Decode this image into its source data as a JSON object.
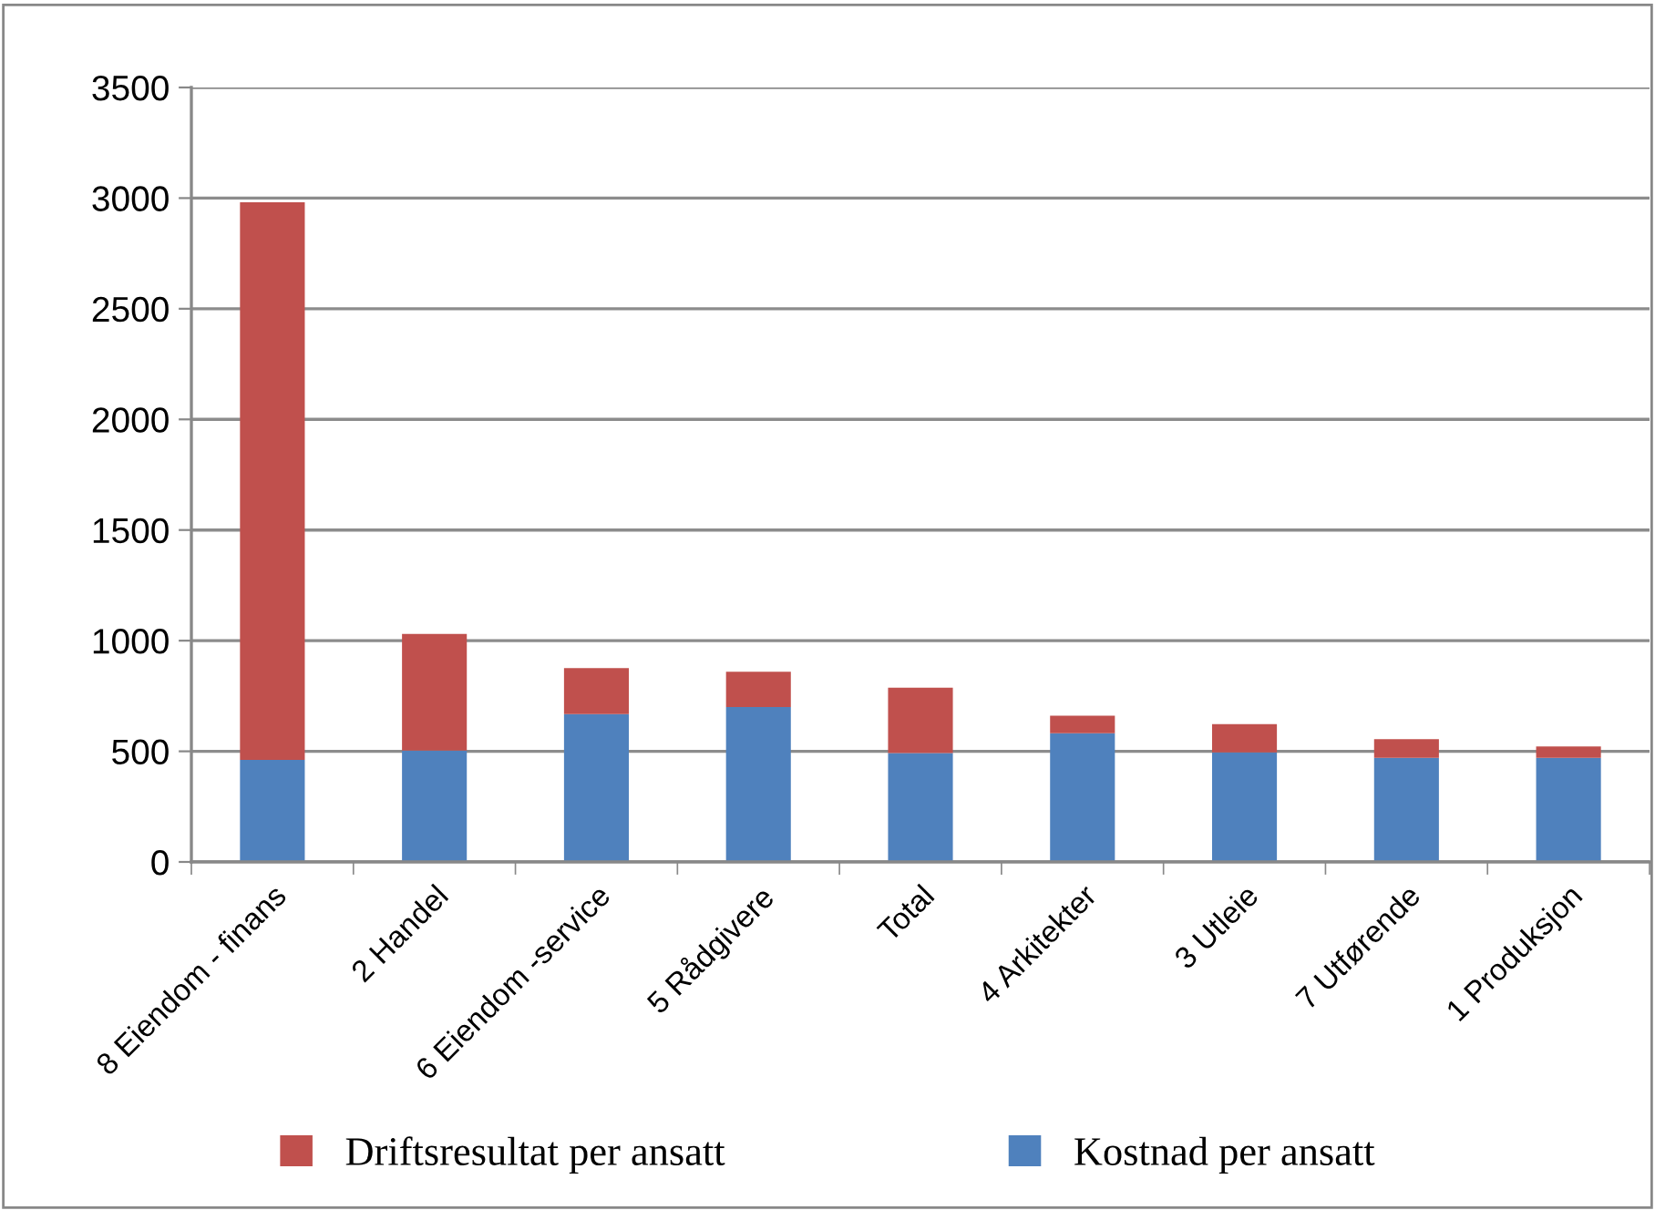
{
  "chart_data": {
    "type": "bar",
    "stacked": true,
    "categories": [
      "8 Eiendom - finans",
      "2 Handel",
      "6 Eiendom -service",
      "5 Rådgivere",
      "Total",
      "4 Arkitekter",
      "3 Utleie",
      "7 Utførende",
      "1 Produksjon"
    ],
    "series": [
      {
        "name": "Kostnad per ansatt",
        "color": "#4f81bd",
        "values": [
          461,
          503,
          668,
          700,
          492,
          582,
          495,
          470,
          470
        ]
      },
      {
        "name": "Driftsresultat per ansatt",
        "color": "#c0504d",
        "values": [
          2520,
          527,
          208,
          160,
          295,
          79,
          128,
          85,
          52
        ]
      }
    ],
    "ylim": [
      0,
      3500
    ],
    "yticks": [
      0,
      500,
      1000,
      1500,
      2000,
      2500,
      3000,
      3500
    ],
    "grid": "y",
    "legend": "bottom"
  }
}
